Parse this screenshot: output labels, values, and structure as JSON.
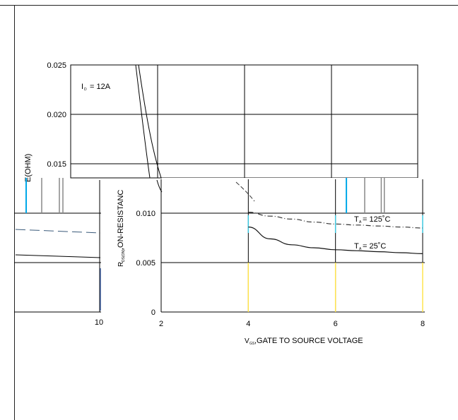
{
  "chart_data": {
    "type": "line",
    "upper_panel": {
      "yticks": [
        "0.025",
        "0.020",
        "0.015"
      ],
      "annotation": "I",
      "annotation_sub": "D",
      "annotation_value": "= 12A",
      "ylabel_fragment": "E(OHM)"
    },
    "lower_panel": {
      "yticks": [
        "0.010",
        "0.005",
        "0"
      ],
      "xticks": [
        "2",
        "4",
        "6",
        "8"
      ],
      "xlim": [
        2,
        8
      ],
      "ylim": [
        0,
        0.01
      ],
      "xlabel_main": "V",
      "xlabel_sub": "GS",
      "xlabel_rest": " ,GATE TO SOURCE VOLTAGE",
      "ylabel_main": "R",
      "ylabel_sub": "DS(ON)",
      "ylabel_rest": ",ON-RESISTANC",
      "series": [
        {
          "name_main": "T",
          "name_sub": "A",
          "name_rest": " = 125˚C",
          "x": [
            4.0,
            4.5,
            5.0,
            5.5,
            6.0,
            6.5,
            7.0,
            7.5,
            8.0
          ],
          "y": [
            0.0101,
            0.0097,
            0.0094,
            0.0091,
            0.0089,
            0.0088,
            0.0087,
            0.0086,
            0.0085
          ]
        },
        {
          "name_main": "T",
          "name_sub": "A",
          "name_rest": " = 25˚C",
          "x": [
            4.0,
            4.5,
            5.0,
            5.5,
            6.0,
            6.5,
            7.0,
            7.5,
            8.0
          ],
          "y": [
            0.0086,
            0.0074,
            0.0068,
            0.0065,
            0.0063,
            0.0062,
            0.0061,
            0.006,
            0.0059
          ]
        }
      ]
    },
    "left_fragment": {
      "xticks": [
        "10"
      ]
    }
  }
}
